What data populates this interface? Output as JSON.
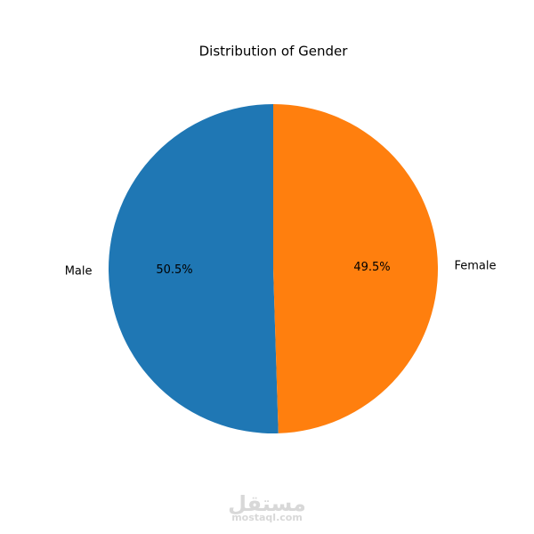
{
  "chart_data": {
    "type": "pie",
    "title": "Distribution of Gender",
    "categories": [
      "Male",
      "Female"
    ],
    "values": [
      50.5,
      49.5
    ],
    "value_labels": [
      "50.5%",
      "49.5%"
    ],
    "colors": [
      "#1f77b4",
      "#ff7f0e"
    ],
    "start_angle": 90,
    "counterclockwise": true
  },
  "watermark": {
    "logo": "مستقل",
    "site": "mostaql.com"
  }
}
